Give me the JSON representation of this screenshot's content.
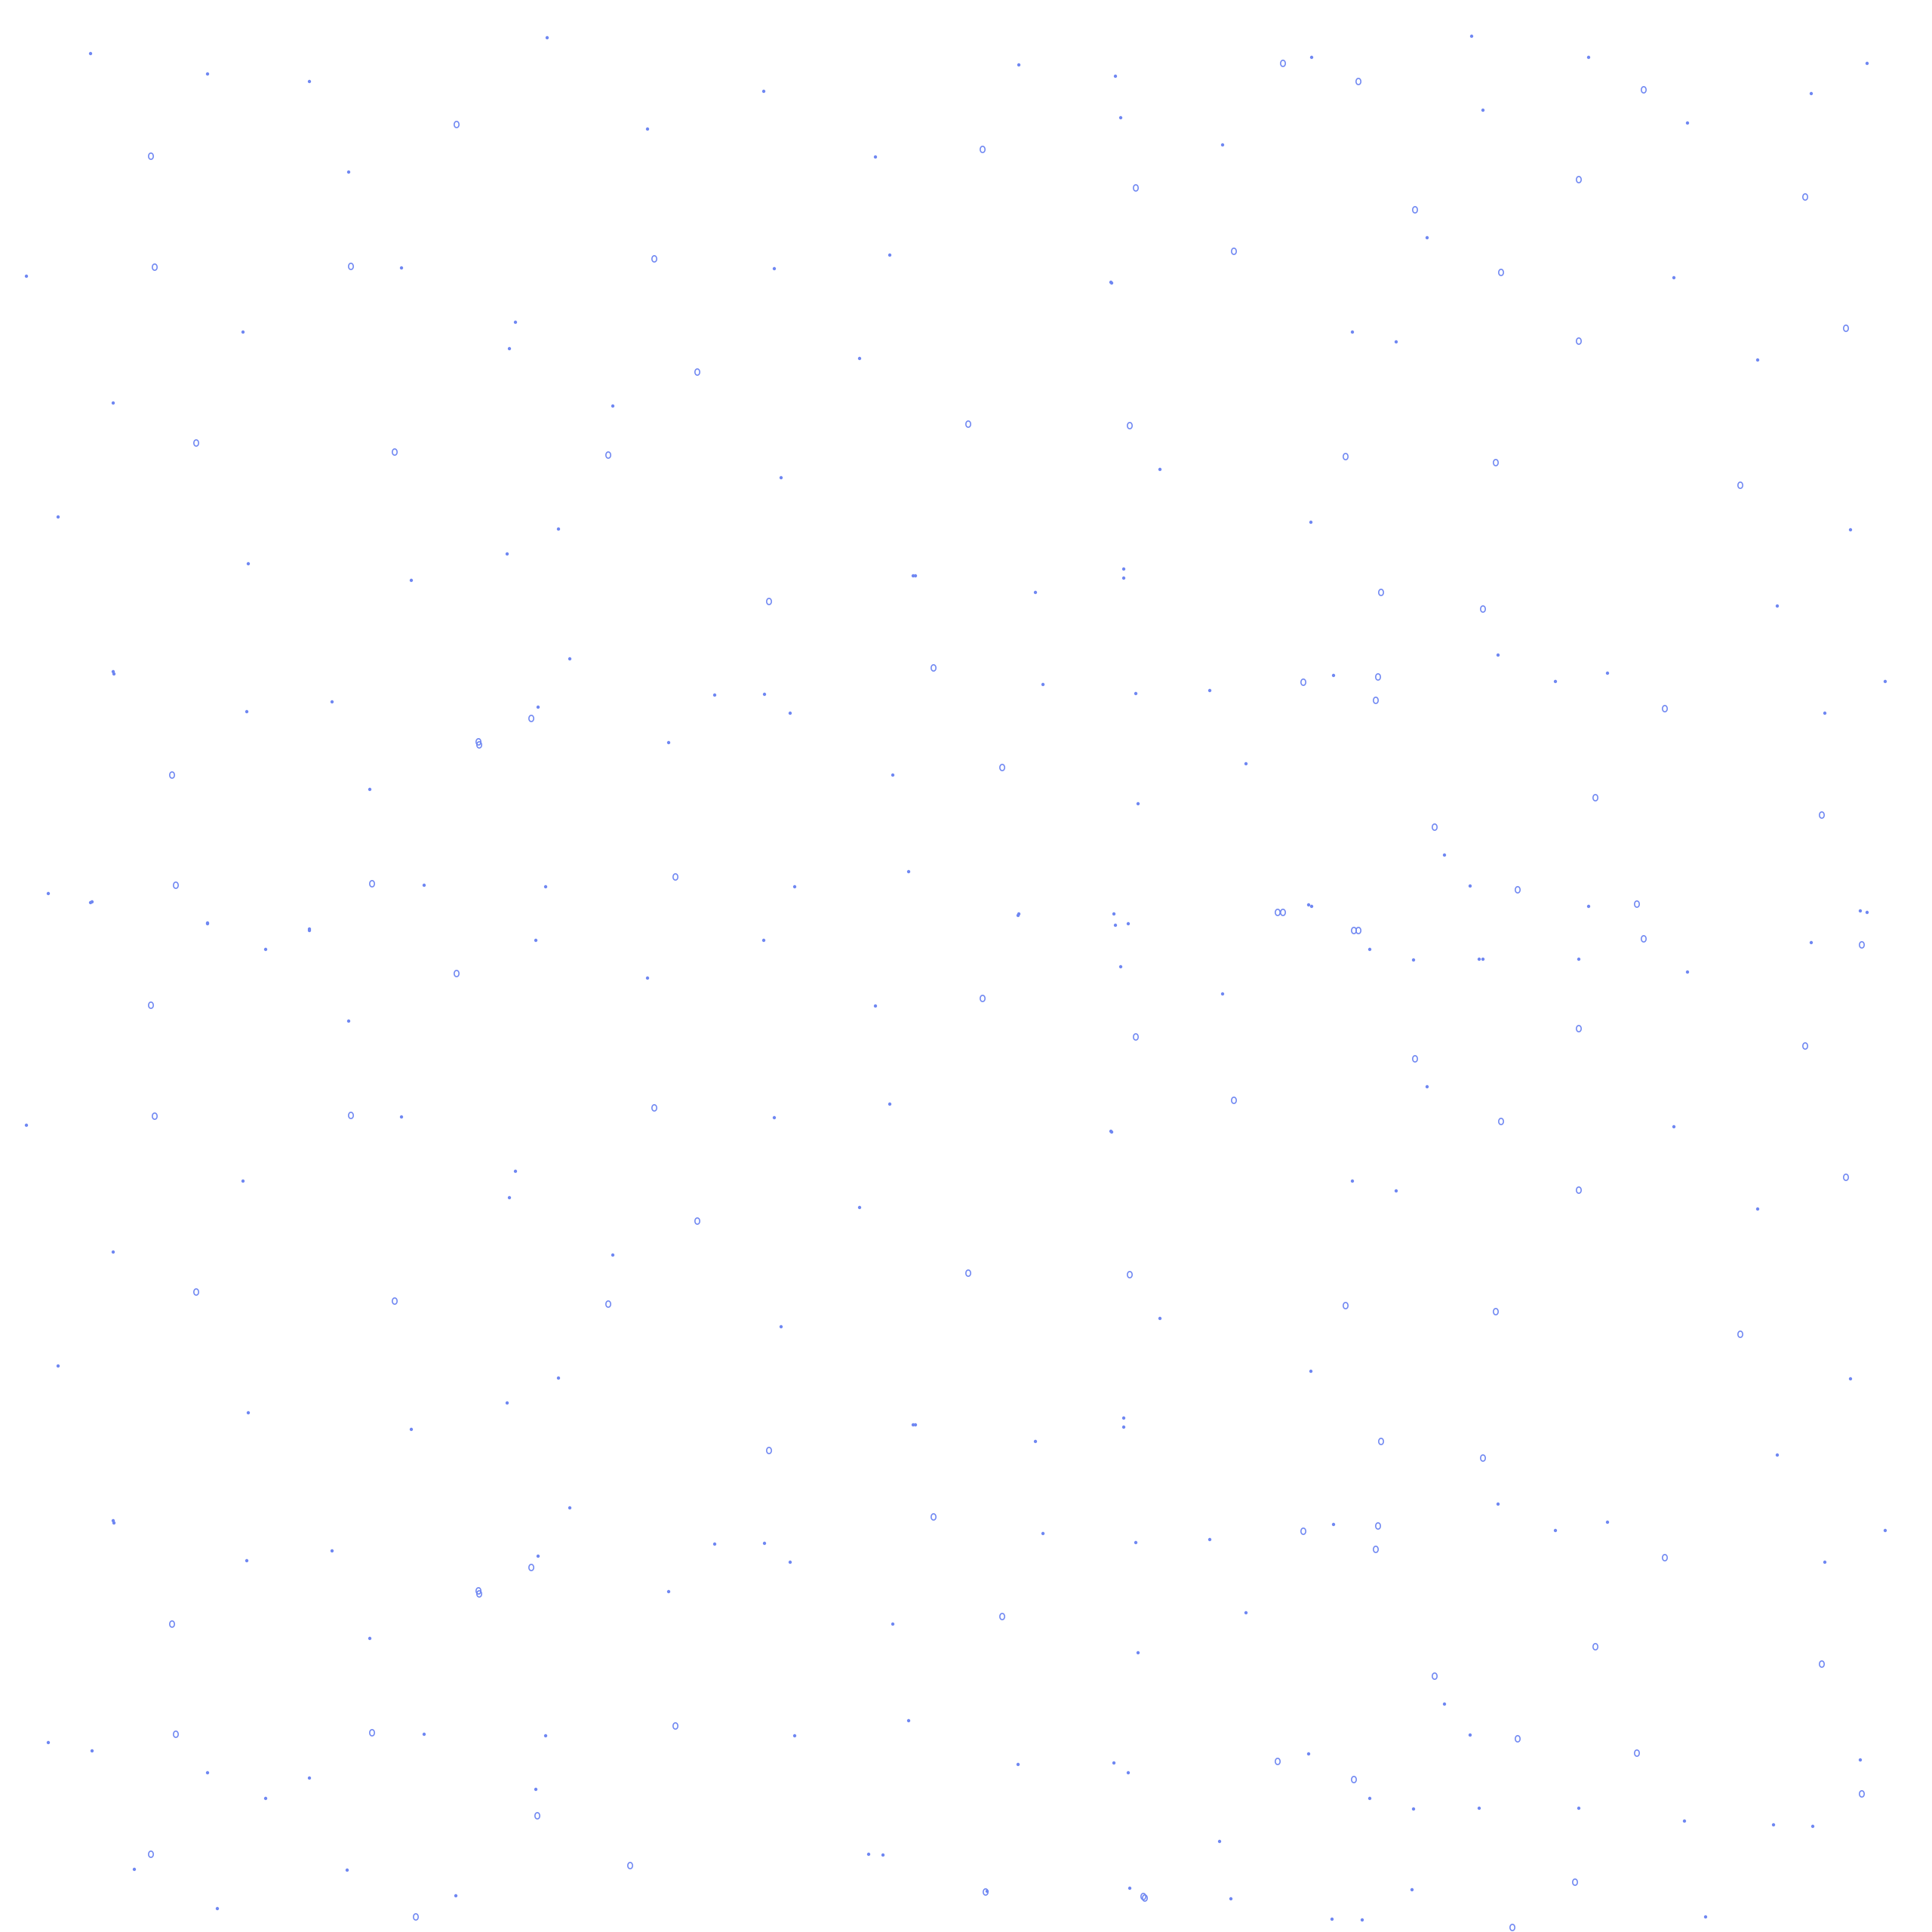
{
  "background": {
    "color": "#ffffff",
    "pattern": "scattered-dots",
    "dot_color": "#6f87f2",
    "repeat": "tiled-two-times-vertically"
  }
}
